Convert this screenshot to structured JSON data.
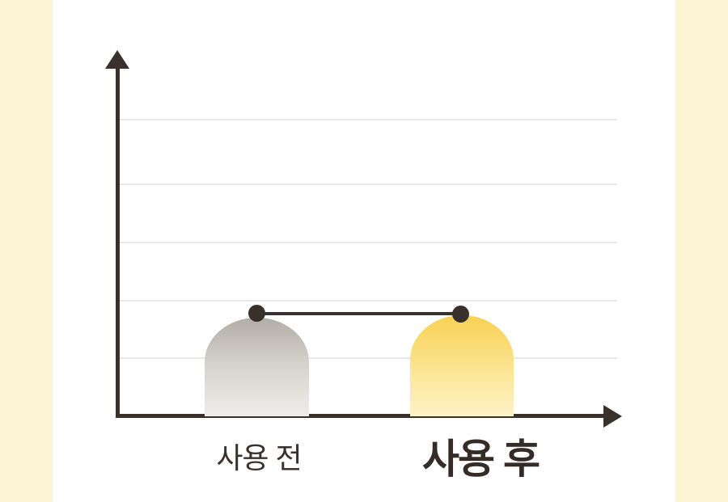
{
  "page": {
    "background_color": "#FFFFFF",
    "accent_panel_color": "#FDF4D4"
  },
  "chart_data": {
    "type": "bar",
    "title": "",
    "xlabel": "",
    "ylabel": "",
    "categories": [
      "사용 전",
      "사용 후"
    ],
    "values": [
      1.7,
      1.7
    ],
    "value_axis": {
      "numeric_labels_shown": false,
      "gridline_count": 5,
      "note": "unlabeled axis; bar heights estimated in gridline units, both equal"
    },
    "annotations": [
      "flat horizontal connector line with endpoint dots marking equal bar heights (no change between before and after)"
    ],
    "legend": null,
    "grid": true,
    "bar_styles": [
      {
        "category": "사용 전",
        "gradient_top": "#B2ADA5",
        "gradient_bottom": "#EFEDEA",
        "label_style": "medium"
      },
      {
        "category": "사용 후",
        "gradient_top": "#F8D153",
        "gradient_bottom": "#FDF3C7",
        "label_style": "large-bold"
      }
    ],
    "marker_color": "#39302C",
    "axis_color": "#3A302C",
    "gridline_color": "#EAE8E6"
  }
}
